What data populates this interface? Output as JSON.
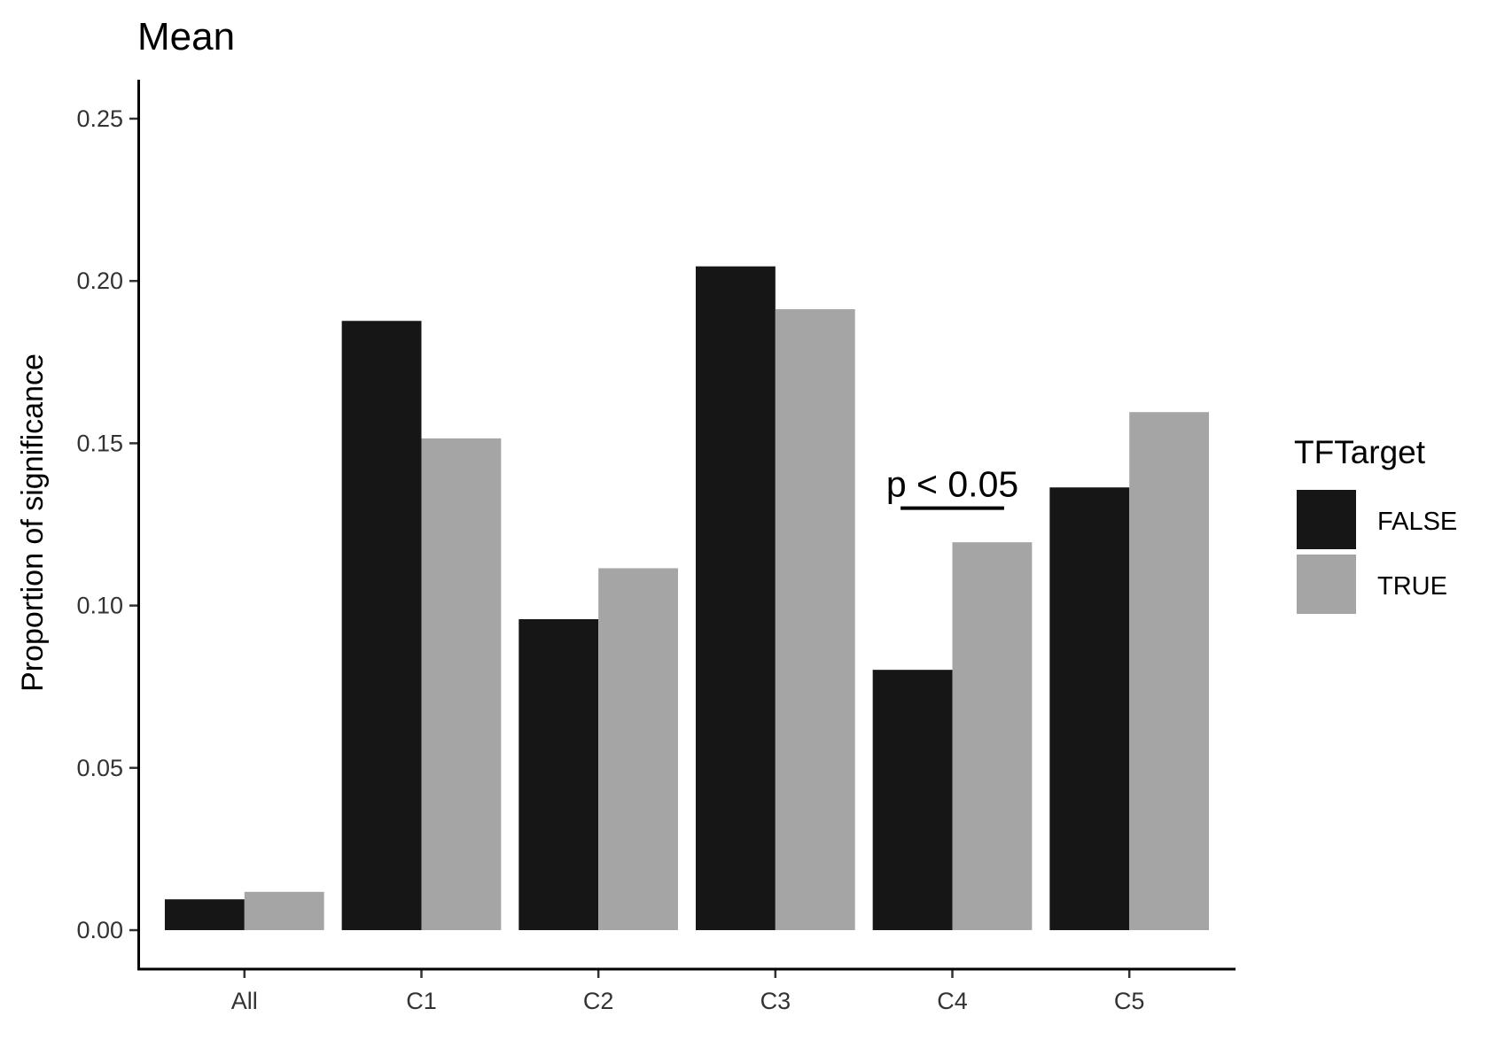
{
  "chart_data": {
    "type": "bar",
    "title": "Mean",
    "xlabel": "",
    "ylabel": "Proportion of significance",
    "ylim": [
      -0.012,
      0.262
    ],
    "yticks": [
      "0.00",
      "0.05",
      "0.10",
      "0.15",
      "0.20",
      "0.25"
    ],
    "ytick_values": [
      0.0,
      0.05,
      0.1,
      0.15,
      0.2,
      0.25
    ],
    "categories": [
      "All",
      "C1",
      "C2",
      "C3",
      "C4",
      "C5"
    ],
    "series": [
      {
        "name": "FALSE",
        "color": "#161616",
        "values": [
          0.0095,
          0.1877,
          0.0958,
          0.2045,
          0.0802,
          0.1364
        ]
      },
      {
        "name": "TRUE",
        "color": "#a5a5a5",
        "values": [
          0.0118,
          0.1515,
          0.1115,
          0.1913,
          0.1195,
          0.1596
        ]
      }
    ],
    "legend": {
      "title": "TFTarget",
      "position": "right",
      "entries": [
        "FALSE",
        "TRUE"
      ]
    },
    "annotation": {
      "text": "p < 0.05",
      "category": "C4",
      "line_y": 0.13
    },
    "grid": false
  }
}
